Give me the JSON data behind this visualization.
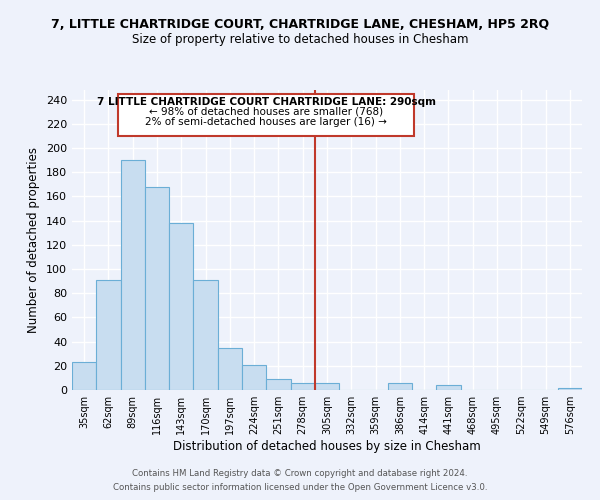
{
  "title": "7, LITTLE CHARTRIDGE COURT, CHARTRIDGE LANE, CHESHAM, HP5 2RQ",
  "subtitle": "Size of property relative to detached houses in Chesham",
  "xlabel": "Distribution of detached houses by size in Chesham",
  "ylabel": "Number of detached properties",
  "bar_color": "#c8ddf0",
  "bar_edge_color": "#6baed6",
  "background_color": "#eef2fb",
  "grid_color": "white",
  "bin_labels": [
    "35sqm",
    "62sqm",
    "89sqm",
    "116sqm",
    "143sqm",
    "170sqm",
    "197sqm",
    "224sqm",
    "251sqm",
    "278sqm",
    "305sqm",
    "332sqm",
    "359sqm",
    "386sqm",
    "414sqm",
    "441sqm",
    "468sqm",
    "495sqm",
    "522sqm",
    "549sqm",
    "576sqm"
  ],
  "bar_heights": [
    23,
    91,
    190,
    168,
    138,
    91,
    35,
    21,
    9,
    6,
    6,
    0,
    0,
    6,
    0,
    4,
    0,
    0,
    0,
    0,
    2
  ],
  "vline_color": "#c0392b",
  "ylim": [
    0,
    248
  ],
  "yticks": [
    0,
    20,
    40,
    60,
    80,
    100,
    120,
    140,
    160,
    180,
    200,
    220,
    240
  ],
  "annotation_title": "7 LITTLE CHARTRIDGE COURT CHARTRIDGE LANE: 290sqm",
  "annotation_line1": "← 98% of detached houses are smaller (768)",
  "annotation_line2": "2% of semi-detached houses are larger (16) →",
  "annotation_box_color": "white",
  "annotation_box_edge": "#c0392b",
  "footer1": "Contains HM Land Registry data © Crown copyright and database right 2024.",
  "footer2": "Contains public sector information licensed under the Open Government Licence v3.0."
}
